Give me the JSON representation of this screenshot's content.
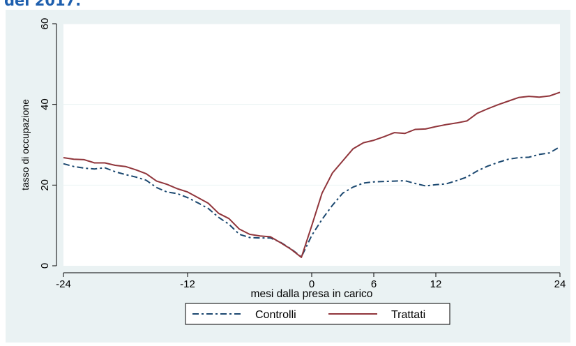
{
  "heading": "del 2017.",
  "colors": {
    "outer_background": "#eaf2f3",
    "plot_background": "#ffffff",
    "grid": "#eaf2f3",
    "controlli": "#1a476f",
    "trattati": "#90353b",
    "heading": "#1f5fae"
  },
  "chart_data": {
    "type": "line",
    "title": "",
    "xlabel": "mesi dalla presa in carico",
    "ylabel": "tasso di occupazione",
    "xlim": [
      -24,
      24
    ],
    "ylim": [
      0,
      60
    ],
    "xticks": [
      -24,
      -12,
      0,
      6,
      12,
      24
    ],
    "yticks": [
      0,
      20,
      40,
      60
    ],
    "grid": true,
    "legend_position": "bottom",
    "series": [
      {
        "name": "Controlli",
        "style": "dash-dot",
        "color": "#1a476f",
        "x": [
          -24,
          -23,
          -22,
          -21,
          -20,
          -19,
          -18,
          -17,
          -16,
          -15,
          -14,
          -13,
          -12,
          -11,
          -10,
          -9,
          -8,
          -7,
          -6,
          -5,
          -4,
          -3,
          -2,
          -1,
          0,
          1,
          2,
          3,
          4,
          5,
          6,
          7,
          8,
          9,
          10,
          11,
          12,
          13,
          14,
          15,
          16,
          17,
          18,
          19,
          20,
          21,
          22,
          23,
          24
        ],
        "y": [
          25.3,
          24.6,
          24.2,
          24.0,
          24.3,
          23.3,
          22.6,
          22.0,
          21.2,
          19.4,
          18.3,
          17.9,
          16.9,
          15.6,
          14.2,
          12.0,
          10.3,
          7.8,
          7.0,
          6.9,
          6.9,
          5.8,
          4.2,
          2.2,
          7.5,
          11.5,
          15.0,
          18.0,
          19.5,
          20.5,
          20.8,
          20.9,
          21.0,
          21.1,
          20.4,
          19.8,
          20.1,
          20.3,
          21.1,
          22.0,
          23.5,
          24.7,
          25.6,
          26.4,
          26.8,
          26.9,
          27.6,
          28.0,
          29.5
        ]
      },
      {
        "name": "Trattati",
        "style": "solid",
        "color": "#90353b",
        "x": [
          -24,
          -23,
          -22,
          -21,
          -20,
          -19,
          -18,
          -17,
          -16,
          -15,
          -14,
          -13,
          -12,
          -11,
          -10,
          -9,
          -8,
          -7,
          -6,
          -5,
          -4,
          -3,
          -2,
          -1,
          0,
          1,
          2,
          3,
          4,
          5,
          6,
          7,
          8,
          9,
          10,
          11,
          12,
          13,
          14,
          15,
          16,
          17,
          18,
          19,
          20,
          21,
          22,
          23,
          24
        ],
        "y": [
          26.8,
          26.4,
          26.3,
          25.5,
          25.5,
          24.9,
          24.6,
          23.8,
          22.8,
          21.0,
          20.2,
          19.1,
          18.3,
          16.9,
          15.5,
          13.0,
          11.7,
          9.1,
          7.8,
          7.4,
          7.2,
          5.7,
          4.1,
          2.1,
          9.9,
          18.0,
          23.0,
          26.0,
          29.0,
          30.5,
          31.1,
          32.0,
          33.0,
          32.8,
          33.8,
          33.9,
          34.5,
          35.0,
          35.4,
          35.9,
          37.8,
          38.9,
          39.9,
          40.8,
          41.7,
          42.0,
          41.8,
          42.1,
          43.0
        ]
      }
    ]
  }
}
